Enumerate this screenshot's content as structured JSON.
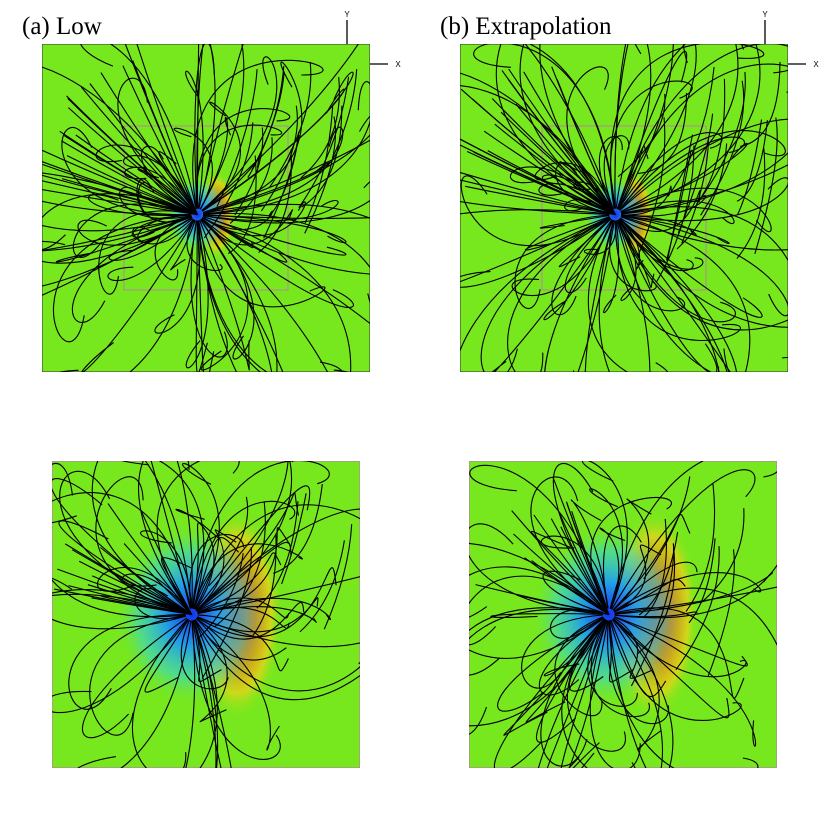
{
  "labels": {
    "low": "(a) Low",
    "extrapolation": "(b) Extrapolation"
  },
  "axis": {
    "x": "X",
    "y": "Y"
  },
  "colors": {
    "background_field": "#77e81d",
    "positive_pole": "#e01a10",
    "negative_pole": "#1432ef",
    "field_lines": "#000000",
    "zoom_box": "#c868c8"
  },
  "panels": [
    {
      "id": "low-full",
      "view": "full-domain"
    },
    {
      "id": "extrapolation-full",
      "view": "full-domain"
    },
    {
      "id": "low-zoom",
      "view": "zoomed-center"
    },
    {
      "id": "extrapolation-zoom",
      "view": "zoomed-center"
    }
  ]
}
